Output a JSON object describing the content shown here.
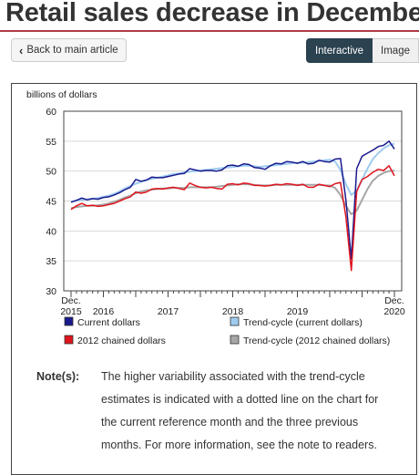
{
  "page": {
    "title": "Retail sales decrease in December",
    "back_label": "Back to main article",
    "tabs": [
      {
        "label": "Interactive"
      },
      {
        "label": "Image"
      }
    ]
  },
  "notes": {
    "label": "Note(s):",
    "text": "The higher variability associated with the trend-cycle estimates is indicated with a dotted line on the chart for the current reference month and the three previous months. For more information, see the note to readers."
  },
  "colors": {
    "current": "#1a1a8c",
    "trend_current": "#9ecbf0",
    "chained": "#e0141e",
    "trend_chained": "#a6a6a6",
    "title_rule": "#af3c43"
  },
  "chart_data": {
    "type": "line",
    "ylabel": "billions of dollars",
    "ylim": [
      30,
      60
    ],
    "yticks": [
      30,
      35,
      40,
      45,
      50,
      55,
      60
    ],
    "x": [
      "2015-12",
      "2016-01",
      "2016-02",
      "2016-03",
      "2016-04",
      "2016-05",
      "2016-06",
      "2016-07",
      "2016-08",
      "2016-09",
      "2016-10",
      "2016-11",
      "2016-12",
      "2017-01",
      "2017-02",
      "2017-03",
      "2017-04",
      "2017-05",
      "2017-06",
      "2017-07",
      "2017-08",
      "2017-09",
      "2017-10",
      "2017-11",
      "2017-12",
      "2018-01",
      "2018-02",
      "2018-03",
      "2018-04",
      "2018-05",
      "2018-06",
      "2018-07",
      "2018-08",
      "2018-09",
      "2018-10",
      "2018-11",
      "2018-12",
      "2019-01",
      "2019-02",
      "2019-03",
      "2019-04",
      "2019-05",
      "2019-06",
      "2019-07",
      "2019-08",
      "2019-09",
      "2019-10",
      "2019-11",
      "2019-12",
      "2020-01",
      "2020-02",
      "2020-03",
      "2020-04",
      "2020-05",
      "2020-06",
      "2020-07",
      "2020-08",
      "2020-09",
      "2020-10",
      "2020-11",
      "2020-12"
    ],
    "xtick_labels": [
      {
        "x": "2015-12",
        "label": "Dec.",
        "sub": "2015"
      },
      {
        "x": "2016-06",
        "label": "2016"
      },
      {
        "x": "2017-06",
        "label": "2017"
      },
      {
        "x": "2018-06",
        "label": "2018"
      },
      {
        "x": "2019-06",
        "label": "2019"
      },
      {
        "x": "2020-12",
        "label": "Dec.",
        "sub": "2020"
      }
    ],
    "series": [
      {
        "name": "Current dollars",
        "color_key": "current",
        "values": [
          44.8,
          45.1,
          45.5,
          45.2,
          45.4,
          45.3,
          45.6,
          45.7,
          46.0,
          46.4,
          46.9,
          47.3,
          48.6,
          48.3,
          48.5,
          49.0,
          48.9,
          48.9,
          49.1,
          49.3,
          49.5,
          49.6,
          50.4,
          50.2,
          50.0,
          50.1,
          50.1,
          50.0,
          50.2,
          50.9,
          51.0,
          50.8,
          51.2,
          51.1,
          50.6,
          50.5,
          50.3,
          50.9,
          51.3,
          51.2,
          51.6,
          51.5,
          51.3,
          51.6,
          51.2,
          51.3,
          51.8,
          51.6,
          51.5,
          52.0,
          52.1,
          45.1,
          35.3,
          50.4,
          52.5,
          53.0,
          53.5,
          54.1,
          54.3,
          55.0,
          53.7
        ]
      },
      {
        "name": "Trend-cycle (current dollars)",
        "color_key": "trend_current",
        "values": [
          44.9,
          45.1,
          45.2,
          45.3,
          45.4,
          45.5,
          45.7,
          45.9,
          46.2,
          46.6,
          47.1,
          47.5,
          47.9,
          48.2,
          48.5,
          48.7,
          48.9,
          49.1,
          49.3,
          49.5,
          49.6,
          49.8,
          49.9,
          50.0,
          50.1,
          50.2,
          50.3,
          50.4,
          50.5,
          50.6,
          50.7,
          50.8,
          50.9,
          50.9,
          50.8,
          50.7,
          50.8,
          50.9,
          51.0,
          51.1,
          51.2,
          51.3,
          51.4,
          51.4,
          51.5,
          51.6,
          51.7,
          51.8,
          51.9,
          51.6,
          50.2,
          47.8,
          46.0,
          46.8,
          48.6,
          50.4,
          52.0,
          53.0,
          53.8,
          54.3,
          54.6
        ]
      },
      {
        "name": "2012 chained dollars",
        "color_key": "chained",
        "values": [
          43.6,
          44.2,
          44.6,
          44.2,
          44.3,
          44.1,
          44.2,
          44.4,
          44.6,
          45.0,
          45.4,
          45.7,
          46.5,
          46.3,
          46.5,
          47.0,
          47.1,
          47.0,
          47.2,
          47.3,
          47.1,
          46.9,
          48.0,
          47.6,
          47.3,
          47.2,
          47.3,
          47.1,
          47.0,
          47.8,
          47.9,
          47.7,
          48.0,
          47.9,
          47.6,
          47.6,
          47.5,
          47.6,
          47.8,
          47.7,
          47.9,
          47.8,
          47.6,
          47.8,
          47.3,
          47.3,
          47.8,
          47.6,
          47.4,
          47.9,
          48.1,
          42.3,
          33.4,
          46.6,
          48.6,
          49.1,
          49.8,
          50.3,
          50.1,
          50.9,
          49.2
        ]
      },
      {
        "name": "Trend-cycle (2012 chained dollars)",
        "color_key": "trend_chained",
        "values": [
          43.8,
          44.0,
          44.1,
          44.2,
          44.2,
          44.3,
          44.4,
          44.6,
          44.9,
          45.2,
          45.6,
          45.9,
          46.3,
          46.6,
          46.8,
          46.9,
          47.0,
          47.1,
          47.1,
          47.2,
          47.2,
          47.2,
          47.3,
          47.3,
          47.3,
          47.3,
          47.3,
          47.4,
          47.5,
          47.6,
          47.7,
          47.8,
          47.8,
          47.8,
          47.7,
          47.6,
          47.6,
          47.6,
          47.7,
          47.7,
          47.7,
          47.7,
          47.7,
          47.7,
          47.7,
          47.7,
          47.7,
          47.6,
          47.6,
          47.2,
          46.0,
          44.2,
          42.8,
          43.4,
          45.2,
          47.0,
          48.4,
          49.2,
          49.7,
          50.0,
          50.1
        ]
      }
    ],
    "legend": {
      "position": "bottom",
      "items": [
        {
          "label": "Current dollars",
          "color_key": "current"
        },
        {
          "label": "Trend-cycle (current dollars)",
          "color_key": "trend_current"
        },
        {
          "label": "2012 chained dollars",
          "color_key": "chained"
        },
        {
          "label": "Trend-cycle (2012 chained dollars)",
          "color_key": "trend_chained"
        }
      ]
    },
    "grid": "horizontal"
  }
}
